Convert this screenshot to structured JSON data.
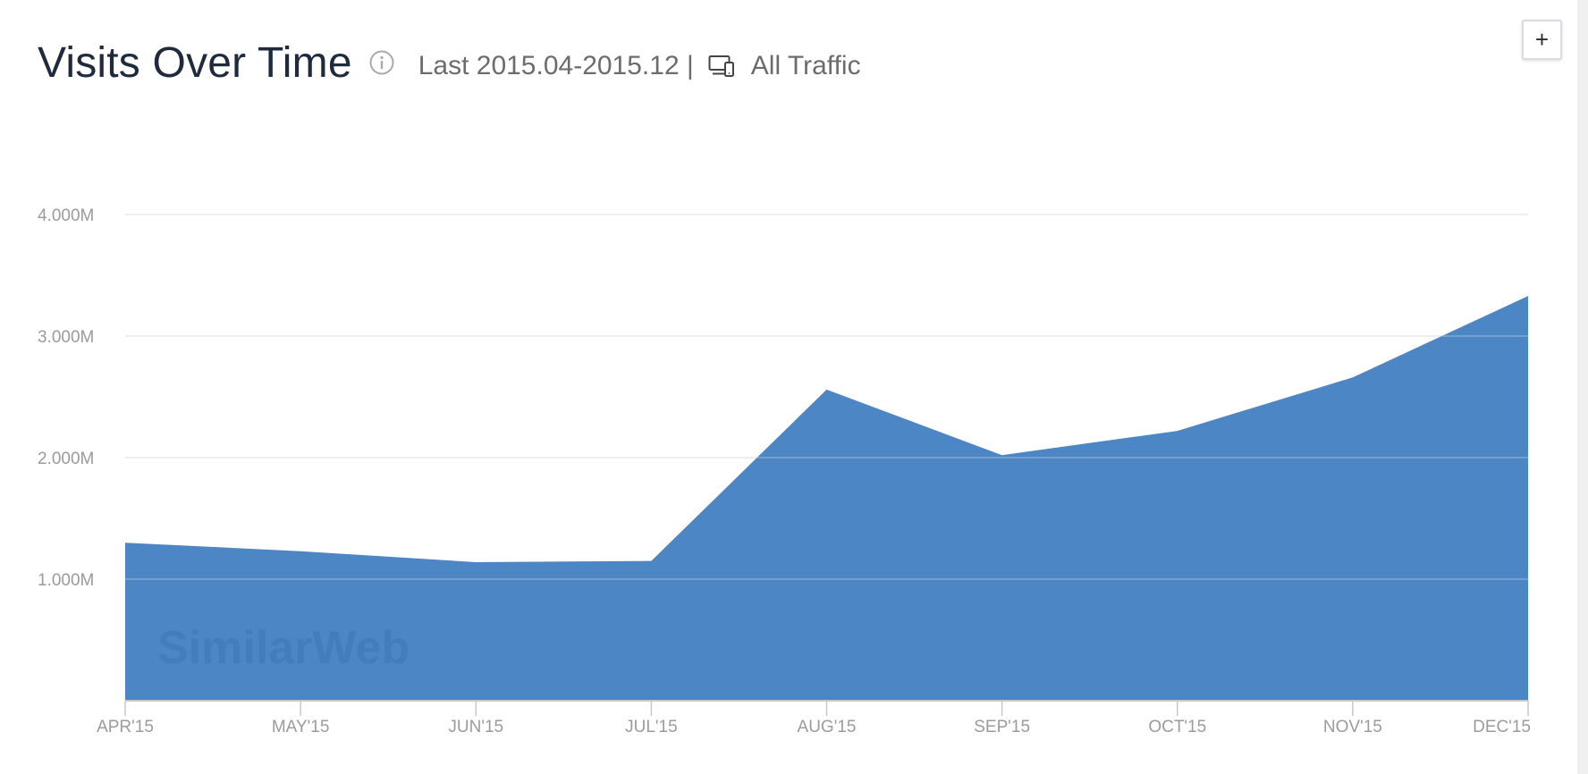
{
  "header": {
    "title": "Visits Over Time",
    "range_label": "Last 2015.04-2015.12 |",
    "traffic_label": "All Traffic",
    "info_icon": "info-icon",
    "device_icon": "devices-icon"
  },
  "expand_button": {
    "label": "+"
  },
  "watermark": {
    "text": "SimilarWeb"
  },
  "chart_data": {
    "type": "area",
    "categories": [
      "APR'15",
      "MAY'15",
      "JUN'15",
      "JUL'15",
      "AUG'15",
      "SEP'15",
      "OCT'15",
      "NOV'15",
      "DEC'15"
    ],
    "series": [
      {
        "values": [
          1300000,
          1230000,
          1140000,
          1150000,
          2560000,
          2020000,
          2220000,
          2660000,
          3330000
        ]
      }
    ],
    "yticks": [
      1000000,
      2000000,
      3000000,
      4000000
    ],
    "ytick_labels": [
      "1.000M",
      "2.000M",
      "3.000M",
      "4.000M"
    ],
    "ylim": [
      0,
      4000000
    ],
    "grid": true,
    "fill_color": "#4d86c4",
    "title": "",
    "xlabel": "",
    "ylabel": ""
  }
}
